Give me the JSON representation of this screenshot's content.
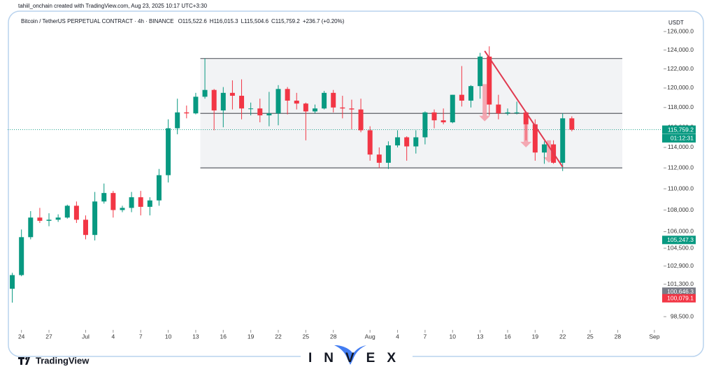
{
  "chart_data": {
    "type": "candlestick",
    "credit": "tahiil_onchain created with TradingView.com, Aug 23, 2025 10:17 UTC+3:30",
    "title": "Bitcoin / TetherUS PERPETUAL CONTRACT · 4h · BINANCE",
    "ohlc_legend": [
      "O115,522.6",
      "H116,015.3",
      "L115,504.6",
      "C115,759.2",
      "+236.7 (+0.20%)"
    ],
    "currency": "USDT",
    "brand": "TradingView",
    "watermark": "INVEX",
    "log_scale": true,
    "up_color": "#089981",
    "down_color": "#f23645",
    "ylim": [
      97500,
      127000
    ],
    "yticks": [
      {
        "value": 98500,
        "label": "98,500.0"
      },
      {
        "value": 101300,
        "label": "101,300.0"
      },
      {
        "value": 102900,
        "label": "102,900.0"
      },
      {
        "value": 104500,
        "label": "104,500.0"
      },
      {
        "value": 106000,
        "label": "106,000.0"
      },
      {
        "value": 108000,
        "label": "108,000.0"
      },
      {
        "value": 110000,
        "label": "110,000.0"
      },
      {
        "value": 112000,
        "label": "112,000.0"
      },
      {
        "value": 114000,
        "label": "114,000.0"
      },
      {
        "value": 116000,
        "label": "116,000.0"
      },
      {
        "value": 118000,
        "label": "118,000.0"
      },
      {
        "value": 120000,
        "label": "120,000.0"
      },
      {
        "value": 122000,
        "label": "122,000.0"
      },
      {
        "value": 124000,
        "label": "124,000.0"
      },
      {
        "value": 126000,
        "label": "126,000.0"
      }
    ],
    "xlim": [
      -0.5,
      71
    ],
    "xticks": [
      {
        "value": 1,
        "label": "24"
      },
      {
        "value": 4,
        "label": "27"
      },
      {
        "value": 8,
        "label": "Jul"
      },
      {
        "value": 11,
        "label": "4"
      },
      {
        "value": 14,
        "label": "7"
      },
      {
        "value": 17,
        "label": "10"
      },
      {
        "value": 20,
        "label": "13"
      },
      {
        "value": 23,
        "label": "16"
      },
      {
        "value": 26,
        "label": "19"
      },
      {
        "value": 29,
        "label": "22"
      },
      {
        "value": 32,
        "label": "25"
      },
      {
        "value": 35,
        "label": "28"
      },
      {
        "value": 39,
        "label": "Aug"
      },
      {
        "value": 42,
        "label": "4"
      },
      {
        "value": 45,
        "label": "7"
      },
      {
        "value": 48,
        "label": "10"
      },
      {
        "value": 51,
        "label": "13"
      },
      {
        "value": 54,
        "label": "16"
      },
      {
        "value": 57,
        "label": "19"
      },
      {
        "value": 60,
        "label": "22"
      },
      {
        "value": 63,
        "label": "25"
      },
      {
        "value": 66,
        "label": "28"
      },
      {
        "value": 70,
        "label": "Sep"
      }
    ],
    "price_labels": [
      {
        "value": 115759.2,
        "label": "115,759.2",
        "color": "#089981"
      },
      {
        "value": 114900,
        "label": "01:12:31",
        "color": "#089981"
      },
      {
        "value": 105247.3,
        "label": "105,247.3",
        "color": "#089981"
      },
      {
        "value": 100646.3,
        "label": "100,646.3",
        "color": "#787b86"
      },
      {
        "value": 100079.1,
        "label": "100,079.1",
        "color": "#f23645"
      }
    ],
    "levels": [
      {
        "value": 123100,
        "from": 20.5,
        "to": 66.5
      },
      {
        "value": 117400,
        "from": 20.5,
        "to": 66.5
      },
      {
        "value": 112000,
        "from": 20.5,
        "to": 66.5
      }
    ],
    "level_color": "#5d5f66",
    "trendline": {
      "x": [
        51.5,
        60
      ],
      "y": [
        123900,
        112100
      ],
      "color": "#e0394f"
    },
    "arrows": [
      {
        "x": 51.5,
        "from": 120400,
        "to": 116600
      },
      {
        "x": 56,
        "from": 117200,
        "to": 114000
      },
      {
        "x": 58.5,
        "from": 114700,
        "to": 112500
      }
    ],
    "arrow_color": "#f59aa6",
    "candles": [
      {
        "open": 100900,
        "high": 102300,
        "low": 99700,
        "close": 102100
      },
      {
        "open": 102100,
        "high": 106200,
        "low": 102000,
        "close": 105500
      },
      {
        "open": 105500,
        "high": 107900,
        "low": 105300,
        "close": 107300
      },
      {
        "open": 107300,
        "high": 108200,
        "low": 106800,
        "close": 107000
      },
      {
        "open": 107000,
        "high": 107700,
        "low": 106500,
        "close": 107100
      },
      {
        "open": 107100,
        "high": 107600,
        "low": 106900,
        "close": 107300
      },
      {
        "open": 107300,
        "high": 108500,
        "low": 107200,
        "close": 108400
      },
      {
        "open": 108400,
        "high": 108800,
        "low": 106800,
        "close": 107100
      },
      {
        "open": 107100,
        "high": 107500,
        "low": 105300,
        "close": 105700
      },
      {
        "open": 105700,
        "high": 109700,
        "low": 105200,
        "close": 108800
      },
      {
        "open": 108800,
        "high": 110500,
        "low": 108600,
        "close": 109600
      },
      {
        "open": 109600,
        "high": 109800,
        "low": 107300,
        "close": 108000
      },
      {
        "open": 108000,
        "high": 108400,
        "low": 107800,
        "close": 108200
      },
      {
        "open": 108200,
        "high": 109700,
        "low": 107800,
        "close": 109200
      },
      {
        "open": 109200,
        "high": 109800,
        "low": 107500,
        "close": 108300
      },
      {
        "open": 108300,
        "high": 109200,
        "low": 107500,
        "close": 108900
      },
      {
        "open": 108900,
        "high": 111900,
        "low": 108400,
        "close": 111300
      },
      {
        "open": 111300,
        "high": 116800,
        "low": 110600,
        "close": 115900
      },
      {
        "open": 115900,
        "high": 118900,
        "low": 115300,
        "close": 117500
      },
      {
        "open": 117500,
        "high": 118200,
        "low": 116900,
        "close": 117400
      },
      {
        "open": 117400,
        "high": 119500,
        "low": 117300,
        "close": 119100
      },
      {
        "open": 119100,
        "high": 123100,
        "low": 118900,
        "close": 119800
      },
      {
        "open": 119800,
        "high": 119900,
        "low": 115700,
        "close": 117700
      },
      {
        "open": 117700,
        "high": 120100,
        "low": 116000,
        "close": 119500
      },
      {
        "open": 119500,
        "high": 120800,
        "low": 117800,
        "close": 119200
      },
      {
        "open": 119200,
        "high": 120900,
        "low": 116800,
        "close": 117900
      },
      {
        "open": 117900,
        "high": 118500,
        "low": 117200,
        "close": 117900
      },
      {
        "open": 117900,
        "high": 118900,
        "low": 116500,
        "close": 117200
      },
      {
        "open": 117200,
        "high": 119600,
        "low": 116100,
        "close": 117400
      },
      {
        "open": 117400,
        "high": 120300,
        "low": 116200,
        "close": 119900
      },
      {
        "open": 119900,
        "high": 120100,
        "low": 117300,
        "close": 118700
      },
      {
        "open": 118700,
        "high": 119500,
        "low": 117800,
        "close": 118400
      },
      {
        "open": 118400,
        "high": 118500,
        "low": 114700,
        "close": 117600
      },
      {
        "open": 117600,
        "high": 118300,
        "low": 117400,
        "close": 117900
      },
      {
        "open": 117900,
        "high": 119700,
        "low": 117800,
        "close": 119500
      },
      {
        "open": 119500,
        "high": 119800,
        "low": 117500,
        "close": 118000
      },
      {
        "open": 118000,
        "high": 119200,
        "low": 116900,
        "close": 117900
      },
      {
        "open": 117900,
        "high": 118800,
        "low": 115800,
        "close": 117800
      },
      {
        "open": 117800,
        "high": 118900,
        "low": 115500,
        "close": 115700
      },
      {
        "open": 115700,
        "high": 116100,
        "low": 112700,
        "close": 113300
      },
      {
        "open": 113300,
        "high": 114000,
        "low": 112000,
        "close": 112500
      },
      {
        "open": 112500,
        "high": 114600,
        "low": 111900,
        "close": 114200
      },
      {
        "open": 114200,
        "high": 115700,
        "low": 114000,
        "close": 115000
      },
      {
        "open": 115000,
        "high": 115100,
        "low": 112700,
        "close": 114100
      },
      {
        "open": 114100,
        "high": 115700,
        "low": 113400,
        "close": 115000
      },
      {
        "open": 115000,
        "high": 117600,
        "low": 114300,
        "close": 117500
      },
      {
        "open": 117500,
        "high": 117800,
        "low": 115900,
        "close": 116700
      },
      {
        "open": 116700,
        "high": 117900,
        "low": 116300,
        "close": 116500
      },
      {
        "open": 116500,
        "high": 119300,
        "low": 116400,
        "close": 119300
      },
      {
        "open": 119300,
        "high": 122300,
        "low": 118100,
        "close": 118700
      },
      {
        "open": 118700,
        "high": 120300,
        "low": 118000,
        "close": 120200
      },
      {
        "open": 120200,
        "high": 123700,
        "low": 118900,
        "close": 123300
      },
      {
        "open": 123300,
        "high": 124400,
        "low": 117200,
        "close": 118300
      },
      {
        "open": 118300,
        "high": 119300,
        "low": 116800,
        "close": 117400
      },
      {
        "open": 117400,
        "high": 117900,
        "low": 117200,
        "close": 117500
      },
      {
        "open": 117500,
        "high": 118600,
        "low": 117300,
        "close": 117500
      },
      {
        "open": 117500,
        "high": 117600,
        "low": 114700,
        "close": 116300
      },
      {
        "open": 116300,
        "high": 116800,
        "low": 112700,
        "close": 113500
      },
      {
        "open": 113500,
        "high": 114600,
        "low": 112400,
        "close": 114300
      },
      {
        "open": 114300,
        "high": 114700,
        "low": 112400,
        "close": 112500
      },
      {
        "open": 112500,
        "high": 117400,
        "low": 111700,
        "close": 116900
      },
      {
        "open": 116900,
        "high": 117100,
        "low": 115600,
        "close": 115759.2
      }
    ]
  }
}
